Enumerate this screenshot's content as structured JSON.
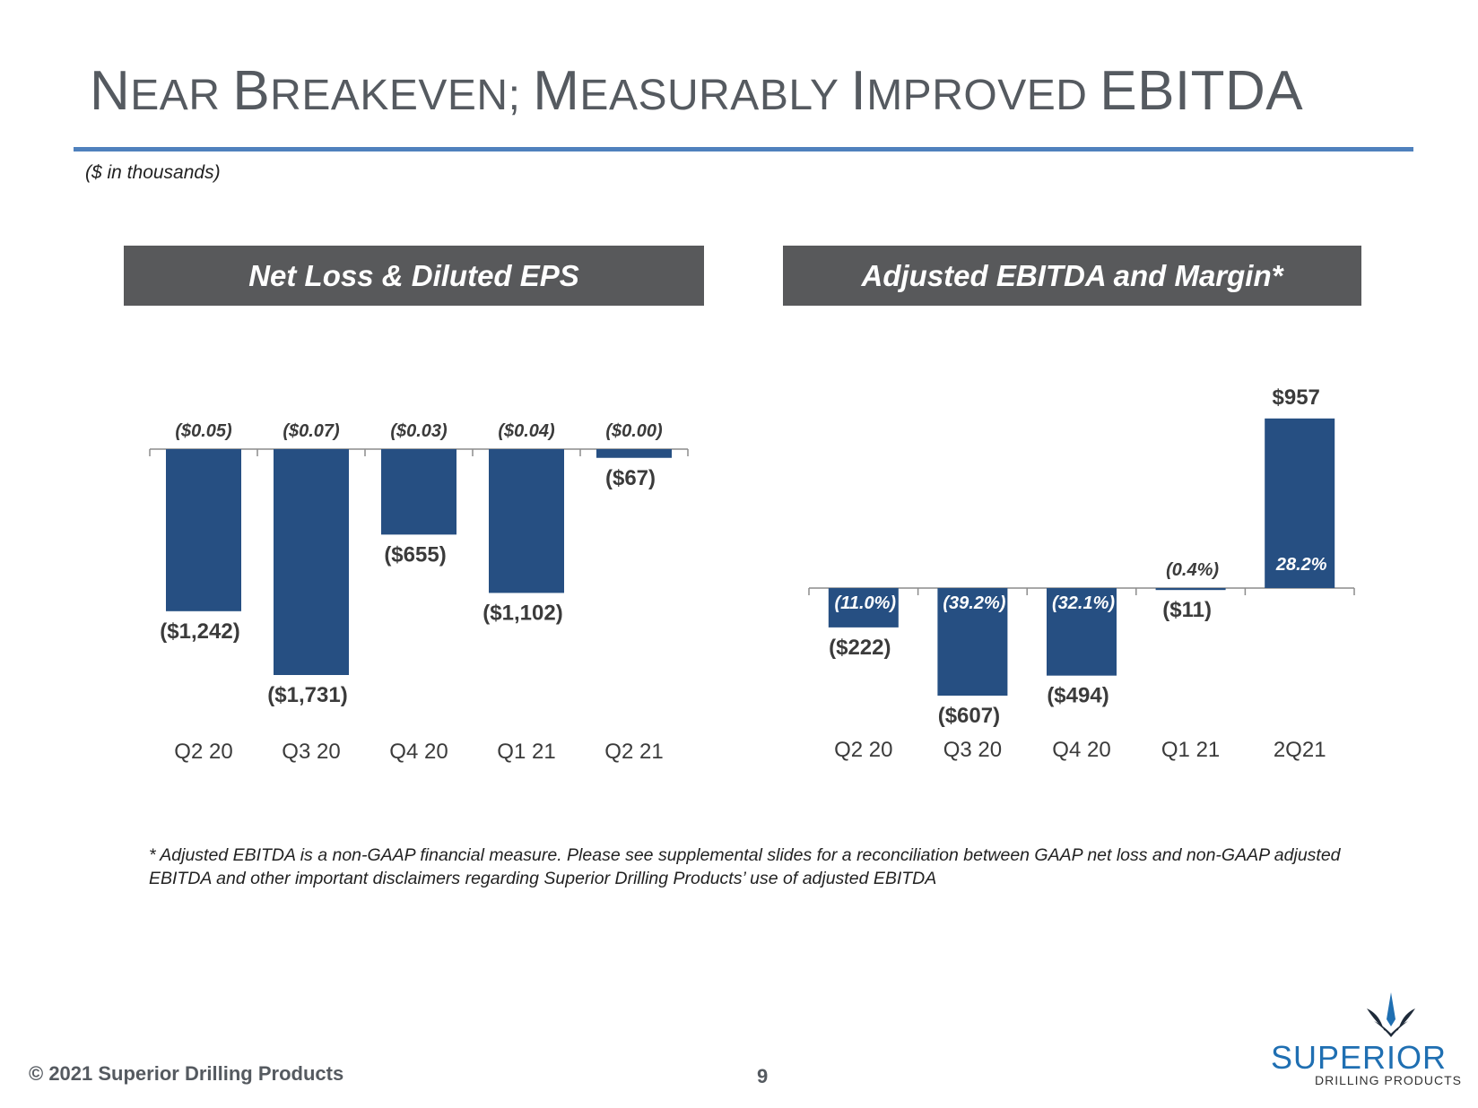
{
  "page": {
    "title_parts": [
      {
        "cap": "N",
        "rest": "EAR "
      },
      {
        "cap": "B",
        "rest": "REAKEVEN; "
      },
      {
        "cap": "M",
        "rest": "EASURABLY "
      },
      {
        "cap": "I",
        "rest": "MPROVED "
      },
      {
        "cap": "EBITDA",
        "rest": ""
      }
    ],
    "subtitle": "($ in thousands)",
    "footnote": "* Adjusted EBITDA is a non-GAAP financial measure.  Please see supplemental slides for a reconciliation between GAAP net loss and non-GAAP adjusted EBITDA and other important disclaimers regarding Superior Drilling Products’ use of adjusted EBITDA",
    "copyright": "© 2021 Superior Drilling Products",
    "page_number": "9",
    "logo": {
      "name": "SUPERIOR",
      "tagline": "DRILLING PRODUCTS"
    },
    "accent_color": "#4f81bd",
    "bar_color": "#264f82",
    "header_color": "#58595b"
  },
  "chart_data": [
    {
      "type": "bar",
      "title": "Net Loss & Diluted EPS",
      "categories": [
        "Q2 20",
        "Q3 20",
        "Q4 20",
        "Q1 21",
        "Q2 21"
      ],
      "values": [
        -1242,
        -1731,
        -655,
        -1102,
        -67
      ],
      "value_labels": [
        "($1,242)",
        "($1,731)",
        "($655)",
        "($1,102)",
        "($67)"
      ],
      "secondary_labels": [
        "($0.05)",
        "($0.07)",
        "($0.03)",
        "($0.04)",
        "($0.00)"
      ],
      "ylim": [
        -1731,
        0
      ]
    },
    {
      "type": "bar",
      "title": "Adjusted EBITDA and Margin*",
      "categories": [
        "Q2 20",
        "Q3 20",
        "Q4 20",
        "Q1 21",
        "2Q21"
      ],
      "values": [
        -222,
        -607,
        -494,
        -11,
        957
      ],
      "value_labels": [
        "($222)",
        "($607)",
        "($494)",
        "($11)",
        "$957"
      ],
      "secondary_labels": [
        "(11.0%)",
        "(39.2%)",
        "(32.1%)",
        "(0.4%)",
        "28.2%"
      ],
      "ylim": [
        -607,
        957
      ]
    }
  ]
}
